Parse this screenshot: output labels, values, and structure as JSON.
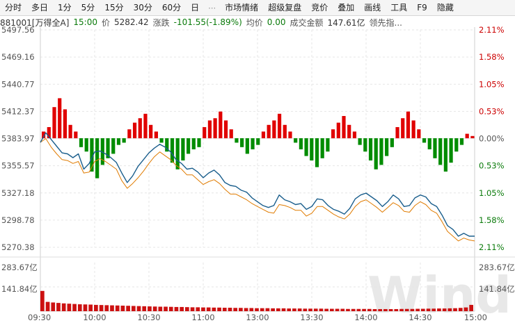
{
  "toolbar": {
    "items": [
      "分时",
      "多日",
      "1分",
      "5分",
      "15分",
      "30分",
      "60分",
      "日",
      "市场情绪",
      "超级复盘",
      "竞价",
      "叠加",
      "画线",
      "工具",
      "F9",
      "隐藏"
    ],
    "more_glyph": "⋯"
  },
  "info": {
    "code": "881001[万得全A]",
    "time": "15:00",
    "price_label": "价",
    "price": "5282.42",
    "change_label": "涨跌",
    "change": "-101.55(-1.89%)",
    "avg_label": "均价",
    "avg": "0.00",
    "turnover_label": "成交金额",
    "turnover": "147.61亿",
    "lead_label": "领先指..."
  },
  "colors": {
    "up": "#e00000",
    "down": "#008c00",
    "price_line": "#1a5e8c",
    "lead_line": "#e07b00",
    "volume": "#cc1111",
    "grid": "#e6e6e6"
  },
  "chart_data": {
    "type": "line",
    "price_axis": {
      "labels": [
        "5497.56",
        "5469.16",
        "5440.77",
        "5412.37",
        "5383.97",
        "5355.57",
        "5327.18",
        "5298.78",
        "5270.38"
      ],
      "ylim": [
        5270.38,
        5497.56
      ],
      "prev_close": 5383.97
    },
    "pct_axis": {
      "labels": [
        "2.11%",
        "1.58%",
        "1.05%",
        "0.53%",
        "0.00%",
        "0.53%",
        "1.05%",
        "1.58%",
        "2.11%"
      ],
      "sign": [
        1,
        1,
        1,
        1,
        0,
        -1,
        -1,
        -1,
        -1
      ]
    },
    "volume_axis": {
      "labels": [
        "283.67亿",
        "141.84亿"
      ],
      "ylim": [
        0,
        425.5
      ]
    },
    "time_axis": [
      "09:30",
      "10:00",
      "10:30",
      "11:00",
      "13:00",
      "13:30",
      "14:00",
      "14:30",
      "15:00"
    ],
    "price_series": {
      "t": [
        0,
        3,
        6,
        9,
        12,
        15,
        18,
        21,
        24,
        27,
        30,
        33,
        36,
        39,
        42,
        45,
        48,
        51,
        54,
        57,
        60,
        63,
        66,
        69,
        72,
        75,
        78,
        81,
        84,
        87,
        90,
        93,
        96,
        99,
        102,
        105,
        108,
        111,
        114,
        117,
        120,
        123,
        126,
        129,
        132,
        135,
        138,
        141,
        144,
        147,
        150,
        153,
        156,
        159,
        162,
        165,
        168,
        171,
        174,
        177,
        180,
        183,
        186,
        189,
        192,
        195,
        198,
        201,
        204,
        207,
        210,
        213,
        216,
        219,
        222,
        225,
        228,
        231,
        234,
        237,
        240
      ],
      "values": [
        5380,
        5390,
        5383,
        5376,
        5369,
        5368,
        5364,
        5368,
        5352,
        5358,
        5370,
        5371,
        5368,
        5364,
        5359,
        5348,
        5338,
        5345,
        5355,
        5362,
        5369,
        5374,
        5378,
        5375,
        5370,
        5362,
        5358,
        5352,
        5353,
        5349,
        5343,
        5348,
        5351,
        5346,
        5338,
        5335,
        5334,
        5330,
        5328,
        5322,
        5318,
        5314,
        5312,
        5314,
        5325,
        5320,
        5318,
        5315,
        5316,
        5310,
        5313,
        5321,
        5320,
        5314,
        5310,
        5308,
        5305,
        5311,
        5321,
        5325,
        5327,
        5323,
        5319,
        5313,
        5318,
        5325,
        5321,
        5313,
        5314,
        5322,
        5325,
        5323,
        5316,
        5313,
        5304,
        5293,
        5289,
        5282,
        5285,
        5282,
        5282
      ]
    },
    "lead_series": {
      "t": [
        0,
        3,
        6,
        9,
        12,
        15,
        18,
        21,
        24,
        27,
        30,
        33,
        36,
        39,
        42,
        45,
        48,
        51,
        54,
        57,
        60,
        63,
        66,
        69,
        72,
        75,
        78,
        81,
        84,
        87,
        90,
        93,
        96,
        99,
        102,
        105,
        108,
        111,
        114,
        117,
        120,
        123,
        126,
        129,
        132,
        135,
        138,
        141,
        144,
        147,
        150,
        153,
        156,
        159,
        162,
        165,
        168,
        171,
        174,
        177,
        180,
        183,
        186,
        189,
        192,
        195,
        198,
        201,
        204,
        207,
        210,
        213,
        216,
        219,
        222,
        225,
        228,
        231,
        234,
        237,
        240
      ],
      "values": [
        5380,
        5384,
        5375,
        5368,
        5362,
        5361,
        5358,
        5360,
        5348,
        5349,
        5360,
        5363,
        5360,
        5356,
        5352,
        5340,
        5332,
        5337,
        5343,
        5350,
        5358,
        5365,
        5370,
        5366,
        5362,
        5356,
        5352,
        5346,
        5346,
        5341,
        5336,
        5339,
        5341,
        5337,
        5331,
        5326,
        5326,
        5323,
        5320,
        5316,
        5313,
        5310,
        5307,
        5306,
        5315,
        5314,
        5312,
        5309,
        5309,
        5303,
        5306,
        5313,
        5313,
        5309,
        5305,
        5302,
        5300,
        5305,
        5313,
        5318,
        5320,
        5316,
        5312,
        5307,
        5312,
        5317,
        5314,
        5308,
        5307,
        5314,
        5318,
        5315,
        5309,
        5306,
        5297,
        5287,
        5282,
        5277,
        5280,
        5278,
        5277
      ]
    },
    "leading_indicator_bars": [
      3,
      5,
      14,
      18,
      13,
      6,
      3,
      -4,
      -6,
      -15,
      -18,
      -12,
      -9,
      -7,
      -3,
      -2,
      4,
      7,
      9,
      11,
      6,
      3,
      -2,
      -6,
      -11,
      -14,
      -10,
      -7,
      -5,
      -4,
      5,
      8,
      9,
      12,
      8,
      4,
      -2,
      -4,
      -7,
      -5,
      -3,
      3,
      6,
      8,
      11,
      6,
      3,
      -2,
      -5,
      -8,
      -10,
      -13,
      -9,
      -6,
      4,
      7,
      10,
      6,
      3,
      -3,
      -6,
      -10,
      -14,
      -12,
      -8,
      -4,
      5,
      9,
      12,
      8,
      4,
      -2,
      -5,
      -9,
      -12,
      -15,
      -11,
      -6,
      -3,
      2,
      1
    ],
    "volume": [
      135,
      62,
      58,
      55,
      52,
      50,
      48,
      46,
      45,
      44,
      42,
      41,
      40,
      39,
      38,
      37,
      36,
      35,
      34,
      33,
      32,
      31,
      30,
      30,
      29,
      28,
      28,
      27,
      26,
      26,
      25,
      25,
      24,
      24,
      23,
      23,
      22,
      22,
      21,
      21,
      20,
      20,
      20,
      19,
      19,
      19,
      18,
      18,
      18,
      17,
      17,
      17,
      17,
      16,
      16,
      16,
      16,
      15,
      15,
      15,
      15,
      15,
      14,
      14,
      14,
      14,
      14,
      15,
      15,
      15,
      16,
      16,
      17,
      17,
      18,
      18,
      19,
      20,
      22,
      25,
      42
    ]
  },
  "watermark": "Wind"
}
